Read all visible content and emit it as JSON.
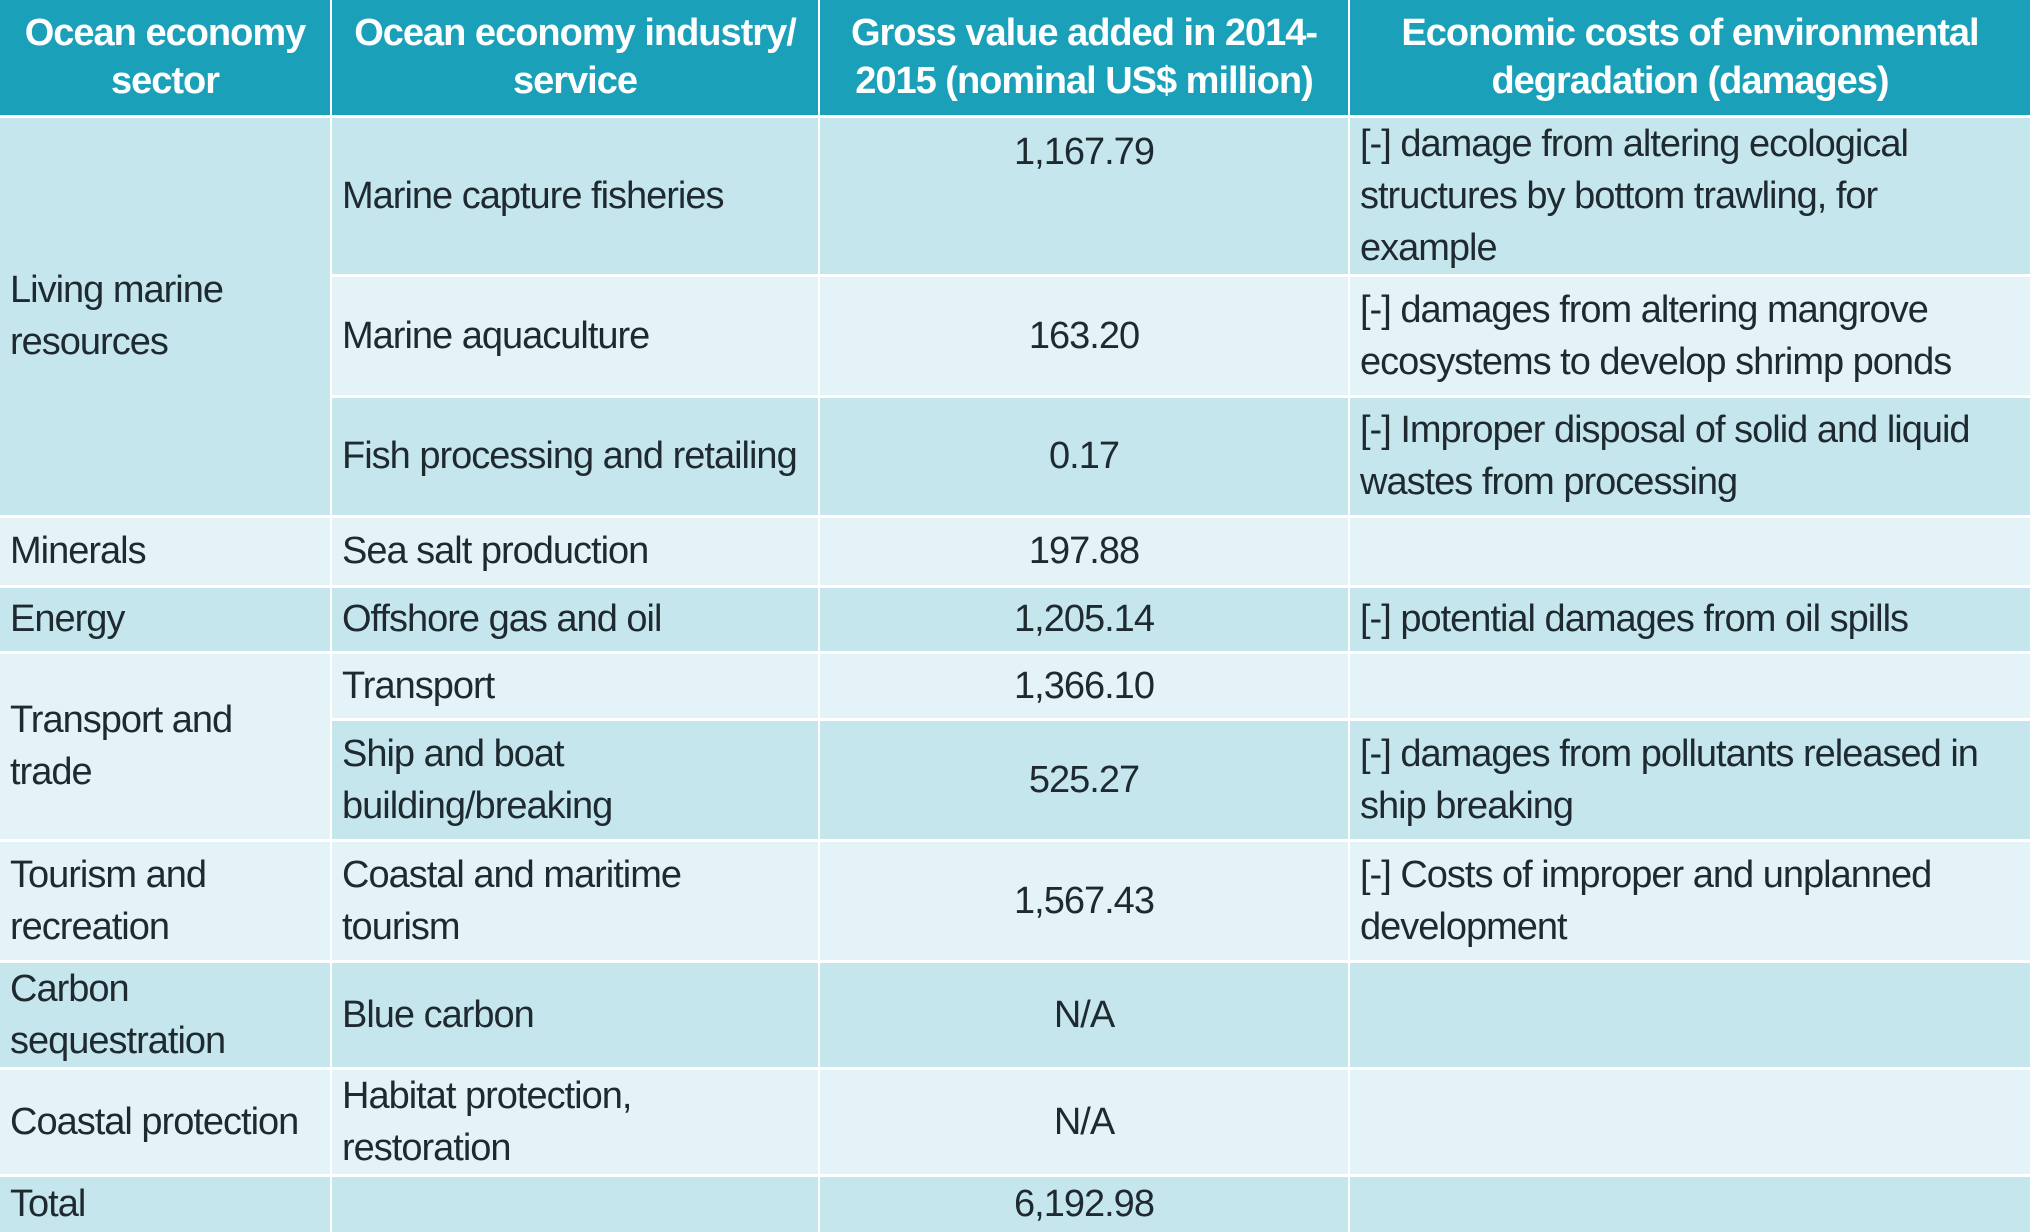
{
  "headers": {
    "sector": "Ocean economy sector",
    "industry": "Ocean economy industry/ service",
    "gva": "Gross value added in 2014-2015 (nominal US$ million)",
    "costs": "Economic costs of environmental degradation (damages)"
  },
  "sectors": {
    "living": "Living marine resources",
    "minerals": "Minerals",
    "energy": "Energy",
    "transport": "Transport and trade",
    "tourism": "Tourism and recreation",
    "carbon": "Carbon sequestration",
    "coastal": "Coastal protection",
    "total": "Total"
  },
  "rows": [
    {
      "industry": "Marine capture fisheries",
      "gva": "1,167.79",
      "cost": "[-] damage from altering ecological structures by bottom trawling, for example"
    },
    {
      "industry": "Marine aquaculture",
      "gva": "163.20",
      "cost": "[-] damages from altering mangrove ecosystems to develop shrimp ponds"
    },
    {
      "industry": "Fish processing and retailing",
      "gva": "0.17",
      "cost": "[-] Improper disposal of solid and liquid wastes from processing"
    },
    {
      "industry": "Sea salt production",
      "gva": "197.88",
      "cost": ""
    },
    {
      "industry": "Offshore gas and oil",
      "gva": "1,205.14",
      "cost": "[-] potential damages from oil spills"
    },
    {
      "industry": "Transport",
      "gva": "1,366.10",
      "cost": ""
    },
    {
      "industry": "Ship and boat building/breaking",
      "gva": "525.27",
      "cost": "[-] damages from pollutants released in ship breaking"
    },
    {
      "industry": "Coastal and maritime tourism",
      "gva": "1,567.43",
      "cost": "[-] Costs of improper and unplanned development"
    },
    {
      "industry": "Blue carbon",
      "gva": "N/A",
      "cost": ""
    },
    {
      "industry": "Habitat protection, restoration",
      "gva": "N/A",
      "cost": ""
    }
  ],
  "total": {
    "gva": "6,192.98"
  },
  "colors": {
    "header": "#1aa0b8",
    "shaded_row": "#c6e6ee",
    "light_row": "#e4f3f7"
  }
}
